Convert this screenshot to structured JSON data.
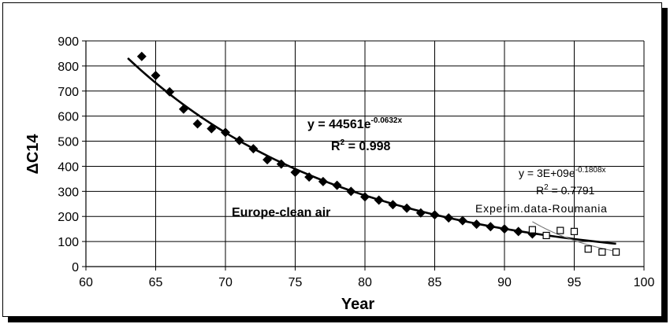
{
  "chart_data": {
    "type": "scatter",
    "title": "",
    "xlabel": "Year",
    "ylabel": "ΔC14",
    "xlim": [
      60,
      100
    ],
    "ylim": [
      0,
      900
    ],
    "xticks": [
      "60",
      "65",
      "70",
      "75",
      "80",
      "85",
      "90",
      "95",
      "100"
    ],
    "yticks": [
      "0",
      "100",
      "200",
      "300",
      "400",
      "500",
      "600",
      "700",
      "800",
      "900"
    ],
    "grid": true,
    "series": [
      {
        "name": "Europe-clean air",
        "marker": "filled-diamond",
        "x": [
          64,
          65,
          66,
          67,
          68,
          69,
          70,
          71,
          72,
          73,
          74,
          75,
          76,
          77,
          78,
          79,
          80,
          81,
          82,
          83,
          84,
          85,
          86,
          87,
          88,
          89,
          90,
          91,
          92
        ],
        "y": [
          838,
          762,
          697,
          628,
          569,
          550,
          535,
          503,
          470,
          426,
          409,
          376,
          357,
          339,
          324,
          300,
          278,
          265,
          247,
          233,
          214,
          206,
          194,
          183,
          169,
          159,
          150,
          140,
          130
        ]
      },
      {
        "name": "Experim.data-Roumania",
        "marker": "open-square",
        "x": [
          92,
          93,
          94,
          95,
          96,
          97,
          98
        ],
        "y": [
          147,
          124,
          144,
          140,
          70,
          58,
          58
        ]
      }
    ],
    "fits": [
      {
        "label": "y = 44561e",
        "exponent": "-0.0632x",
        "r2_label": "R",
        "r2_value": " = 0.998",
        "coef": 44561,
        "k": -0.0632,
        "xrange": [
          63,
          98
        ]
      },
      {
        "label": "y = 3E+09e",
        "exponent": "-0.1808x",
        "r2_label": "R",
        "r2_value": " = 0.7791",
        "coef": 3000000000.0,
        "k": -0.1808,
        "xrange": [
          92,
          98
        ]
      }
    ],
    "annotations": [
      "Europe-clean air",
      "Experim.data-Roumania"
    ]
  }
}
